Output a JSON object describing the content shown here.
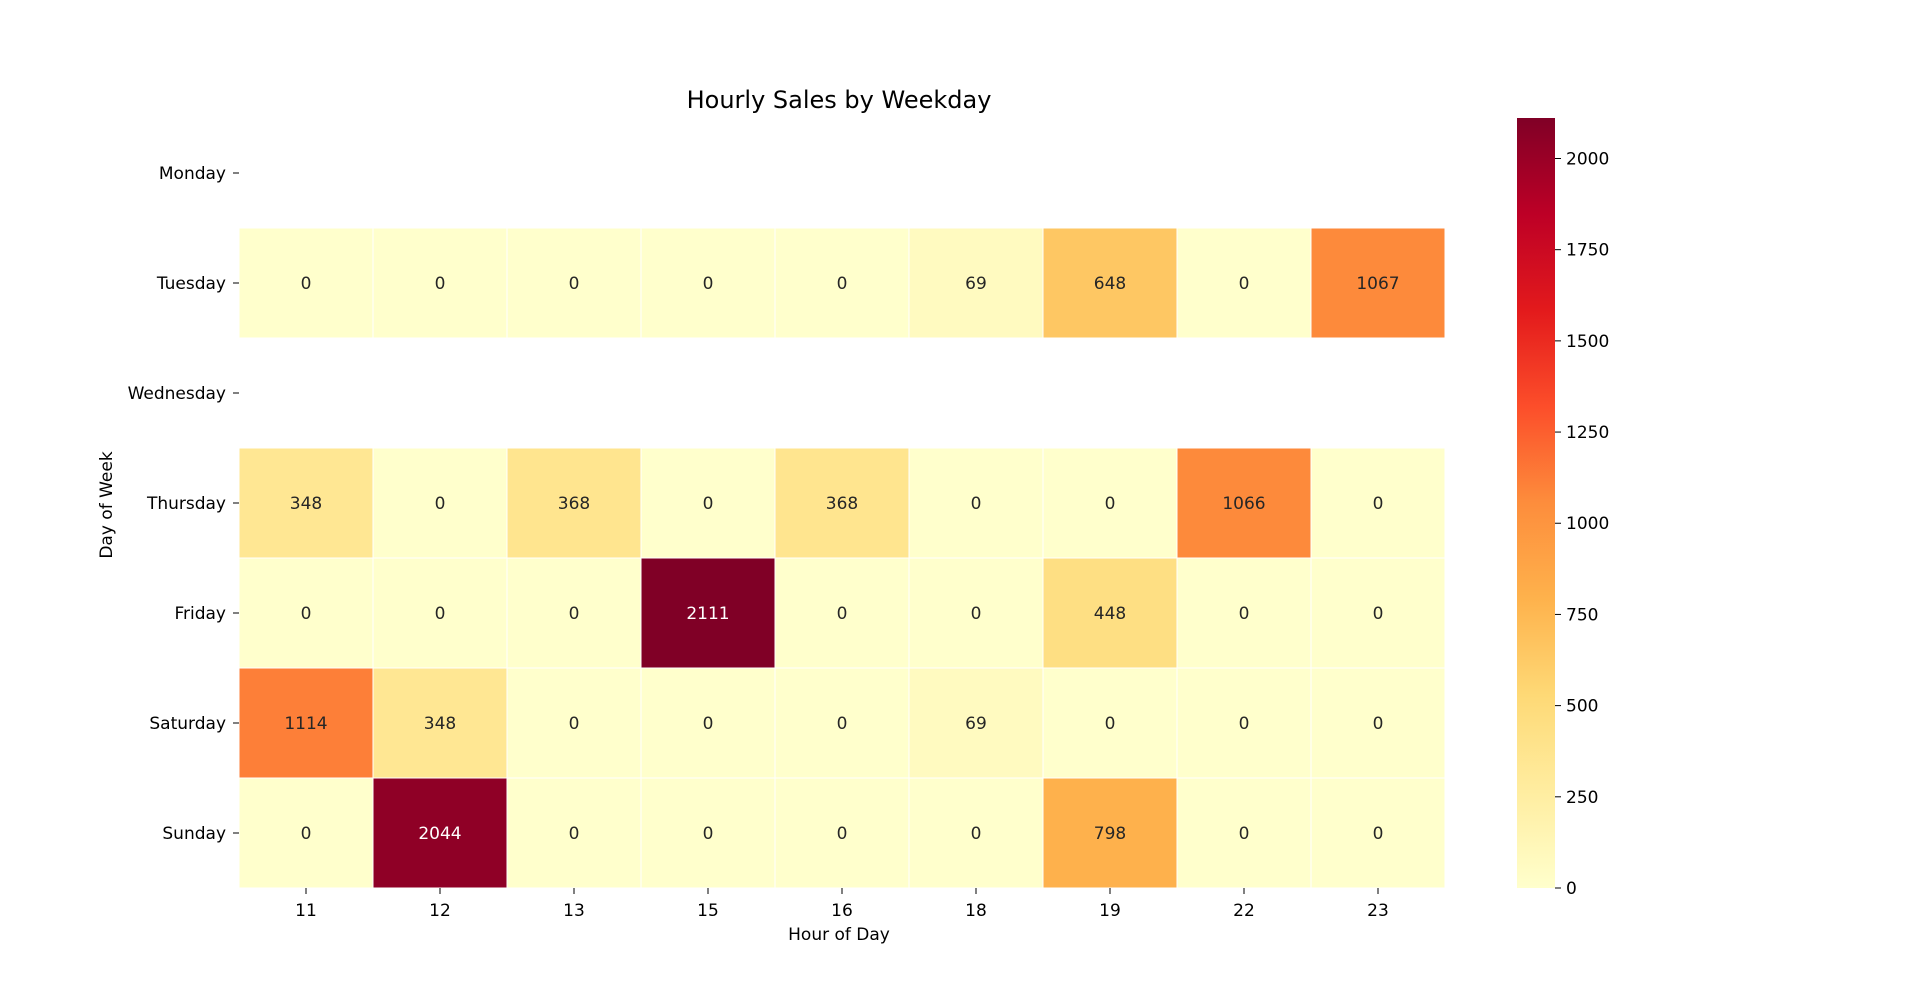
{
  "chart_data": {
    "type": "heatmap",
    "title": "Hourly Sales by Weekday",
    "xlabel": "Hour of Day",
    "ylabel": "Day of Week",
    "x_categories": [
      "11",
      "12",
      "13",
      "15",
      "16",
      "18",
      "19",
      "22",
      "23"
    ],
    "y_categories": [
      "Monday",
      "Tuesday",
      "Wednesday",
      "Thursday",
      "Friday",
      "Saturday",
      "Sunday"
    ],
    "values": [
      [
        null,
        null,
        null,
        null,
        null,
        null,
        null,
        null,
        null
      ],
      [
        0,
        0,
        0,
        0,
        0,
        69,
        648,
        0,
        1067
      ],
      [
        null,
        null,
        null,
        null,
        null,
        null,
        null,
        null,
        null
      ],
      [
        348,
        0,
        368,
        0,
        368,
        0,
        0,
        1066,
        0
      ],
      [
        0,
        0,
        0,
        2111,
        0,
        0,
        448,
        0,
        0
      ],
      [
        1114,
        348,
        0,
        0,
        0,
        69,
        0,
        0,
        0
      ],
      [
        0,
        2044,
        0,
        0,
        0,
        0,
        798,
        0,
        0
      ]
    ],
    "colormap": "YlOrRd",
    "vmin": 0,
    "vmax": 2111,
    "colorbar_ticks": [
      0,
      250,
      500,
      750,
      1000,
      1250,
      1500,
      1750,
      2000
    ],
    "annotated": true
  }
}
